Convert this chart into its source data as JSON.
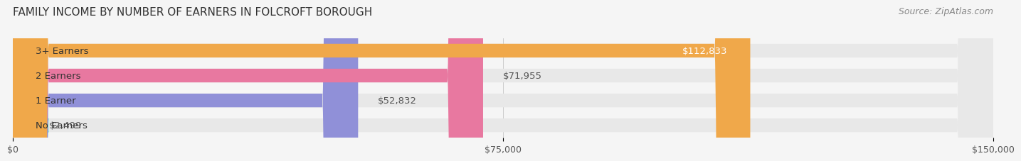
{
  "title": "FAMILY INCOME BY NUMBER OF EARNERS IN FOLCROFT BOROUGH",
  "source": "Source: ZipAtlas.com",
  "categories": [
    "No Earners",
    "1 Earner",
    "2 Earners",
    "3+ Earners"
  ],
  "values": [
    2499,
    52832,
    71955,
    112833
  ],
  "bar_colors": [
    "#5cc8c8",
    "#9090d8",
    "#e878a0",
    "#f0a84a"
  ],
  "label_colors": [
    "#333333",
    "#333333",
    "#333333",
    "#ffffff"
  ],
  "value_labels": [
    "$2,499",
    "$52,832",
    "$71,955",
    "$112,833"
  ],
  "xlim": [
    0,
    150000
  ],
  "xticks": [
    0,
    75000,
    150000
  ],
  "xtick_labels": [
    "$0",
    "$75,000",
    "$150,000"
  ],
  "bar_height": 0.55,
  "background_color": "#f5f5f5",
  "bar_bg_color": "#e8e8e8",
  "title_fontsize": 11,
  "source_fontsize": 9,
  "label_fontsize": 9.5,
  "value_fontsize": 9.5,
  "tick_fontsize": 9
}
